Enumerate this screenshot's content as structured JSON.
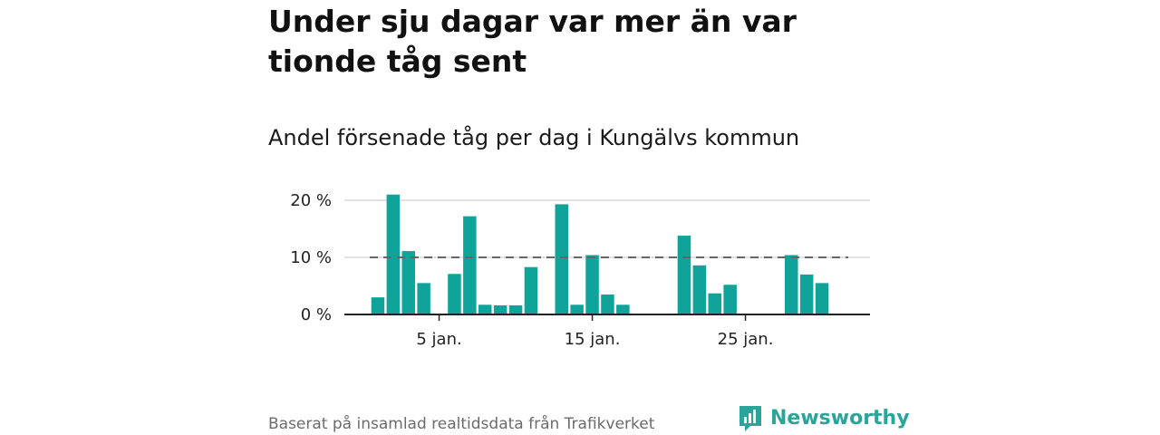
{
  "headline": "Under sju dagar var mer än var tionde tåg sent",
  "subtitle": "Andel försenade tåg per dag i Kungälvs kommun",
  "footer": {
    "source": "Baserat på insamlad realtidsdata från Trafikverket",
    "brand": "Newsworthy",
    "brand_icon": "newsworthy-logo-icon"
  },
  "colors": {
    "bar": "#0fa39a",
    "reference_line": "#666666",
    "grid": "#d9d9d9",
    "axis": "#222222",
    "brand": "#2aa59a"
  },
  "chart_data": {
    "type": "bar",
    "x_unit": "day of January",
    "x": [
      1,
      2,
      3,
      4,
      5,
      6,
      7,
      8,
      9,
      10,
      11,
      12,
      13,
      14,
      15,
      16,
      17,
      18,
      19,
      20,
      21,
      22,
      23,
      24,
      25,
      26,
      27,
      28,
      29,
      30
    ],
    "values": [
      3.0,
      21.0,
      11.1,
      5.5,
      0,
      7.1,
      17.2,
      1.7,
      1.6,
      1.6,
      8.3,
      0,
      19.3,
      1.7,
      10.4,
      3.5,
      1.7,
      0,
      0,
      0,
      13.8,
      8.6,
      3.7,
      5.2,
      0,
      0,
      0,
      10.4,
      7.0,
      5.5
    ],
    "y_ticks": [
      0,
      10,
      20
    ],
    "y_tick_labels": [
      "0 %",
      "10 %",
      "20 %"
    ],
    "ylim": [
      0,
      22
    ],
    "x_ticks": [
      5,
      15,
      25
    ],
    "x_tick_labels": [
      "5 jan.",
      "15 jan.",
      "25 jan."
    ],
    "reference_line": {
      "value": 10,
      "style": "dashed"
    },
    "grid": true
  }
}
